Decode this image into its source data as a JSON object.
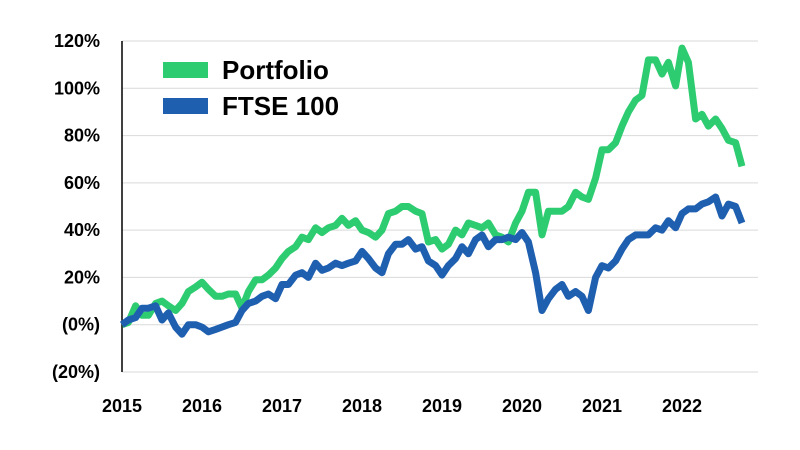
{
  "chart_data": {
    "type": "line",
    "title": "",
    "xlabel": "",
    "ylabel": "",
    "ylim": [
      -20,
      120
    ],
    "xlim": [
      2015.0,
      2022.95
    ],
    "grid": true,
    "legend_position": "top-left",
    "x_ticks": [
      {
        "label": "2015",
        "value": 2015
      },
      {
        "label": "2016",
        "value": 2016
      },
      {
        "label": "2017",
        "value": 2017
      },
      {
        "label": "2018",
        "value": 2018
      },
      {
        "label": "2019",
        "value": 2019
      },
      {
        "label": "2020",
        "value": 2020
      },
      {
        "label": "2021",
        "value": 2021
      },
      {
        "label": "2022",
        "value": 2022
      }
    ],
    "y_ticks": [
      {
        "label": "120%",
        "value": 120
      },
      {
        "label": "100%",
        "value": 100
      },
      {
        "label": "80%",
        "value": 80
      },
      {
        "label": "60%",
        "value": 60
      },
      {
        "label": "40%",
        "value": 40
      },
      {
        "label": "20%",
        "value": 20
      },
      {
        "label": "(0%)",
        "value": 0
      },
      {
        "label": "(20%)",
        "value": -20
      }
    ],
    "series": [
      {
        "name": "Portfolio",
        "color": "#2ecc71",
        "points": [
          [
            2015.0,
            0
          ],
          [
            2015.08,
            1
          ],
          [
            2015.17,
            8
          ],
          [
            2015.25,
            4
          ],
          [
            2015.33,
            4
          ],
          [
            2015.42,
            9
          ],
          [
            2015.5,
            10
          ],
          [
            2015.58,
            8
          ],
          [
            2015.67,
            6
          ],
          [
            2015.75,
            9
          ],
          [
            2015.83,
            14
          ],
          [
            2015.92,
            16
          ],
          [
            2016.0,
            18
          ],
          [
            2016.08,
            15
          ],
          [
            2016.17,
            12
          ],
          [
            2016.25,
            12
          ],
          [
            2016.33,
            13
          ],
          [
            2016.42,
            13
          ],
          [
            2016.5,
            7
          ],
          [
            2016.58,
            14
          ],
          [
            2016.67,
            19
          ],
          [
            2016.75,
            19
          ],
          [
            2016.83,
            21
          ],
          [
            2016.92,
            24
          ],
          [
            2017.0,
            28
          ],
          [
            2017.08,
            31
          ],
          [
            2017.17,
            33
          ],
          [
            2017.25,
            37
          ],
          [
            2017.33,
            36
          ],
          [
            2017.42,
            41
          ],
          [
            2017.5,
            39
          ],
          [
            2017.58,
            41
          ],
          [
            2017.67,
            42
          ],
          [
            2017.75,
            45
          ],
          [
            2017.83,
            42
          ],
          [
            2017.92,
            44
          ],
          [
            2018.0,
            40
          ],
          [
            2018.08,
            39
          ],
          [
            2018.17,
            37
          ],
          [
            2018.25,
            40
          ],
          [
            2018.33,
            47
          ],
          [
            2018.42,
            48
          ],
          [
            2018.5,
            50
          ],
          [
            2018.58,
            50
          ],
          [
            2018.67,
            48
          ],
          [
            2018.75,
            47
          ],
          [
            2018.83,
            35
          ],
          [
            2018.92,
            36
          ],
          [
            2019.0,
            32
          ],
          [
            2019.08,
            34
          ],
          [
            2019.17,
            40
          ],
          [
            2019.25,
            38
          ],
          [
            2019.33,
            43
          ],
          [
            2019.42,
            42
          ],
          [
            2019.5,
            41
          ],
          [
            2019.58,
            43
          ],
          [
            2019.67,
            38
          ],
          [
            2019.75,
            37
          ],
          [
            2019.83,
            35
          ],
          [
            2019.92,
            43
          ],
          [
            2020.0,
            48
          ],
          [
            2020.08,
            56
          ],
          [
            2020.17,
            56
          ],
          [
            2020.25,
            38
          ],
          [
            2020.33,
            48
          ],
          [
            2020.42,
            48
          ],
          [
            2020.5,
            48
          ],
          [
            2020.58,
            50
          ],
          [
            2020.67,
            56
          ],
          [
            2020.75,
            54
          ],
          [
            2020.83,
            53
          ],
          [
            2020.92,
            62
          ],
          [
            2021.0,
            74
          ],
          [
            2021.08,
            74
          ],
          [
            2021.17,
            77
          ],
          [
            2021.25,
            84
          ],
          [
            2021.33,
            90
          ],
          [
            2021.42,
            95
          ],
          [
            2021.5,
            97
          ],
          [
            2021.58,
            112
          ],
          [
            2021.67,
            112
          ],
          [
            2021.75,
            106
          ],
          [
            2021.83,
            111
          ],
          [
            2021.92,
            101
          ],
          [
            2022.0,
            117
          ],
          [
            2022.08,
            111
          ],
          [
            2022.17,
            87
          ],
          [
            2022.25,
            89
          ],
          [
            2022.33,
            84
          ],
          [
            2022.42,
            87
          ],
          [
            2022.5,
            83
          ],
          [
            2022.58,
            78
          ],
          [
            2022.67,
            77
          ],
          [
            2022.75,
            67
          ]
        ]
      },
      {
        "name": "FTSE 100",
        "color": "#1f5fb0",
        "points": [
          [
            2015.0,
            0
          ],
          [
            2015.08,
            2
          ],
          [
            2015.17,
            3
          ],
          [
            2015.25,
            7
          ],
          [
            2015.33,
            7
          ],
          [
            2015.42,
            8
          ],
          [
            2015.5,
            2
          ],
          [
            2015.58,
            5
          ],
          [
            2015.67,
            -1
          ],
          [
            2015.75,
            -4
          ],
          [
            2015.83,
            0
          ],
          [
            2015.92,
            0
          ],
          [
            2016.0,
            -1
          ],
          [
            2016.08,
            -3
          ],
          [
            2016.17,
            -2
          ],
          [
            2016.25,
            -1
          ],
          [
            2016.33,
            0
          ],
          [
            2016.42,
            1
          ],
          [
            2016.5,
            6
          ],
          [
            2016.58,
            9
          ],
          [
            2016.67,
            10
          ],
          [
            2016.75,
            12
          ],
          [
            2016.83,
            13
          ],
          [
            2016.92,
            11
          ],
          [
            2017.0,
            17
          ],
          [
            2017.08,
            17
          ],
          [
            2017.17,
            21
          ],
          [
            2017.25,
            22
          ],
          [
            2017.33,
            20
          ],
          [
            2017.42,
            26
          ],
          [
            2017.5,
            23
          ],
          [
            2017.58,
            24
          ],
          [
            2017.67,
            26
          ],
          [
            2017.75,
            25
          ],
          [
            2017.83,
            26
          ],
          [
            2017.92,
            27
          ],
          [
            2018.0,
            31
          ],
          [
            2018.08,
            28
          ],
          [
            2018.17,
            24
          ],
          [
            2018.25,
            22
          ],
          [
            2018.33,
            30
          ],
          [
            2018.42,
            34
          ],
          [
            2018.5,
            34
          ],
          [
            2018.58,
            36
          ],
          [
            2018.67,
            32
          ],
          [
            2018.75,
            33
          ],
          [
            2018.83,
            27
          ],
          [
            2018.92,
            25
          ],
          [
            2019.0,
            21
          ],
          [
            2019.08,
            25
          ],
          [
            2019.17,
            28
          ],
          [
            2019.25,
            33
          ],
          [
            2019.33,
            30
          ],
          [
            2019.42,
            36
          ],
          [
            2019.5,
            38
          ],
          [
            2019.58,
            33
          ],
          [
            2019.67,
            36
          ],
          [
            2019.75,
            36
          ],
          [
            2019.83,
            37
          ],
          [
            2019.92,
            36
          ],
          [
            2020.0,
            39
          ],
          [
            2020.08,
            35
          ],
          [
            2020.17,
            22
          ],
          [
            2020.25,
            6
          ],
          [
            2020.33,
            11
          ],
          [
            2020.42,
            15
          ],
          [
            2020.5,
            17
          ],
          [
            2020.58,
            12
          ],
          [
            2020.67,
            14
          ],
          [
            2020.75,
            12
          ],
          [
            2020.83,
            6
          ],
          [
            2020.92,
            20
          ],
          [
            2021.0,
            25
          ],
          [
            2021.08,
            24
          ],
          [
            2021.17,
            27
          ],
          [
            2021.25,
            32
          ],
          [
            2021.33,
            36
          ],
          [
            2021.42,
            38
          ],
          [
            2021.5,
            38
          ],
          [
            2021.58,
            38
          ],
          [
            2021.67,
            41
          ],
          [
            2021.75,
            40
          ],
          [
            2021.83,
            44
          ],
          [
            2021.92,
            41
          ],
          [
            2022.0,
            47
          ],
          [
            2022.08,
            49
          ],
          [
            2022.17,
            49
          ],
          [
            2022.25,
            51
          ],
          [
            2022.33,
            52
          ],
          [
            2022.42,
            54
          ],
          [
            2022.5,
            46
          ],
          [
            2022.58,
            51
          ],
          [
            2022.67,
            50
          ],
          [
            2022.75,
            43
          ]
        ]
      }
    ]
  }
}
